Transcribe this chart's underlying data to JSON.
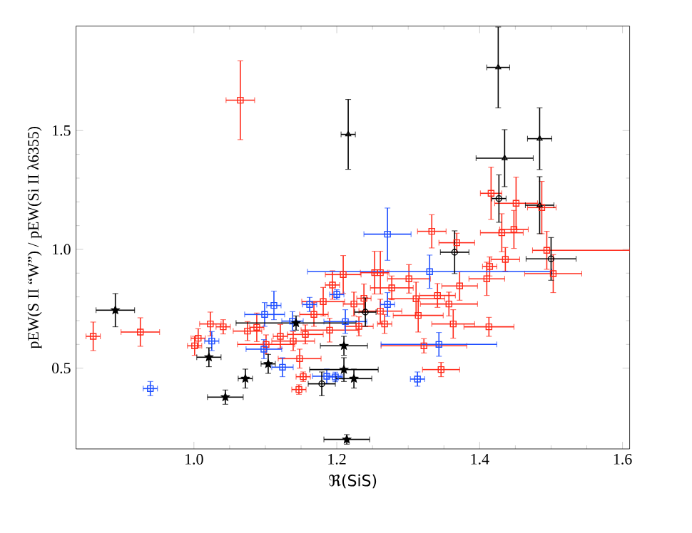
{
  "chart_data": {
    "type": "scatter",
    "xlabel": "ℜ(SiS)",
    "ylabel": "pEW(S II “W”) / pEW(Si II λ6355)",
    "xlim": [
      0.835,
      1.61
    ],
    "ylim": [
      0.16,
      1.94
    ],
    "xticks": [
      {
        "value": 1.0,
        "label": "1.0"
      },
      {
        "value": 1.2,
        "label": "1.2"
      },
      {
        "value": 1.4,
        "label": "1.4"
      },
      {
        "value": 1.6,
        "label": "1.6"
      }
    ],
    "yticks": [
      {
        "value": 0.5,
        "label": "0.5"
      },
      {
        "value": 1.0,
        "label": "1.0"
      },
      {
        "value": 1.5,
        "label": "1.5"
      }
    ],
    "series": [
      {
        "color": "#ff2a1a",
        "marker": "square",
        "x": [
          0.859,
          0.925,
          1.065,
          1.001,
          1.006,
          1.023,
          1.041,
          1.075,
          1.088,
          1.101,
          1.121,
          1.139,
          1.148,
          1.153,
          1.147,
          1.156,
          1.168,
          1.181,
          1.19,
          1.194,
          1.209,
          1.224,
          1.231,
          1.253,
          1.261,
          1.238,
          1.261,
          1.267,
          1.277,
          1.301,
          1.311,
          1.314,
          1.322,
          1.333,
          1.341,
          1.346,
          1.357,
          1.363,
          1.368,
          1.372,
          1.41,
          1.414,
          1.413,
          1.416,
          1.431,
          1.436,
          1.448,
          1.451,
          1.487,
          1.494,
          1.503
        ],
        "values": [
          0.634,
          0.652,
          1.628,
          0.594,
          0.626,
          0.686,
          0.674,
          0.656,
          0.672,
          0.6,
          0.634,
          0.614,
          0.54,
          0.464,
          0.41,
          0.642,
          0.726,
          0.78,
          0.66,
          0.85,
          0.894,
          0.77,
          0.676,
          0.902,
          0.902,
          0.794,
          0.74,
          0.686,
          0.838,
          0.876,
          0.792,
          0.722,
          0.594,
          1.076,
          0.806,
          0.494,
          0.77,
          0.686,
          1.028,
          0.846,
          0.876,
          0.928,
          0.674,
          1.236,
          1.07,
          0.958,
          1.084,
          1.194,
          1.176,
          0.996,
          0.898
        ],
        "xerrors": [
          0.01,
          0.027,
          0.02,
          0.01,
          0.01,
          0.015,
          0.01,
          0.02,
          0.01,
          0.04,
          0.01,
          0.03,
          0.03,
          0.01,
          0.01,
          0.025,
          0.02,
          0.03,
          0.04,
          0.01,
          0.025,
          0.015,
          0.02,
          0.02,
          0.01,
          0.01,
          0.03,
          0.01,
          0.03,
          0.03,
          0.04,
          0.035,
          0.06,
          0.02,
          0.025,
          0.026,
          0.04,
          0.03,
          0.025,
          0.025,
          0.025,
          0.01,
          0.035,
          0.015,
          0.03,
          0.02,
          0.02,
          0.03,
          0.02,
          [
            1.474,
            1.61
          ],
          0.04
        ],
        "errors": [
          0.06,
          0.06,
          0.166,
          0.04,
          0.04,
          0.05,
          0.03,
          0.04,
          0.06,
          0.04,
          0.05,
          0.04,
          0.04,
          0.02,
          0.02,
          0.04,
          0.05,
          0.06,
          0.05,
          0.06,
          0.08,
          0.05,
          0.04,
          0.09,
          0.09,
          0.06,
          0.05,
          0.04,
          0.05,
          0.06,
          0.07,
          0.07,
          0.03,
          0.07,
          0.05,
          0.03,
          0.05,
          0.06,
          0.04,
          0.06,
          0.07,
          0.04,
          0.04,
          0.11,
          0.08,
          0.05,
          0.08,
          0.11,
          0.11,
          0.08,
          0.08
        ]
      },
      {
        "color": "#1f4fff",
        "marker": "square",
        "x": [
          0.939,
          1.025,
          1.099,
          1.112,
          1.124,
          1.098,
          1.162,
          1.2,
          1.212,
          1.186,
          1.198,
          1.271,
          1.271,
          1.33,
          1.343,
          1.313,
          1.138
        ],
        "values": [
          0.414,
          0.614,
          0.726,
          0.764,
          0.504,
          0.58,
          0.768,
          0.81,
          0.696,
          0.466,
          0.463,
          1.064,
          0.768,
          0.906,
          0.6,
          0.454,
          0.698
        ],
        "xerrors": [
          0.01,
          0.01,
          0.028,
          0.01,
          0.015,
          0.025,
          0.01,
          0.01,
          0.03,
          0.02,
          0.01,
          0.033,
          0.01,
          0.171,
          0.081,
          0.01,
          0.015
        ],
        "errors": [
          0.03,
          0.04,
          0.05,
          0.06,
          0.04,
          0.04,
          0.03,
          0.02,
          0.05,
          0.03,
          0.02,
          0.11,
          0.05,
          0.07,
          0.05,
          0.03,
          0.04
        ]
      },
      {
        "color": "#000000",
        "marker": "star",
        "x": [
          0.89,
          1.021,
          1.044,
          1.072,
          1.104,
          1.143,
          1.21,
          1.21,
          1.224,
          1.214
        ],
        "values": [
          0.744,
          0.546,
          0.378,
          0.456,
          0.518,
          0.69,
          0.594,
          0.494,
          0.456,
          0.2
        ],
        "xerrors": [
          0.027,
          0.017,
          0.025,
          0.01,
          0.01,
          0.084,
          0.033,
          0.048,
          0.025,
          0.032
        ],
        "errors": [
          0.07,
          0.04,
          0.03,
          0.04,
          0.04,
          0.03,
          0.04,
          0.05,
          0.04,
          0.02
        ]
      },
      {
        "color": "#000000",
        "marker": "circle",
        "x": [
          1.427,
          1.365,
          1.5,
          1.179,
          1.24
        ],
        "values": [
          1.214,
          0.988,
          0.96,
          0.434,
          0.736
        ],
        "xerrors": [
          0.01,
          0.02,
          0.035,
          0.019,
          0.015
        ],
        "errors": [
          0.1,
          0.09,
          0.09,
          0.05,
          0.06
        ]
      },
      {
        "color": "#000000",
        "marker": "triangle",
        "x": [
          1.216,
          1.426,
          1.435,
          1.484,
          1.484
        ],
        "values": [
          1.484,
          1.766,
          1.384,
          1.466,
          1.186
        ],
        "xerrors": [
          0.01,
          0.016,
          0.04,
          0.017,
          0.02
        ],
        "errors": [
          0.147,
          0.17,
          0.12,
          0.13,
          0.12
        ]
      }
    ]
  }
}
